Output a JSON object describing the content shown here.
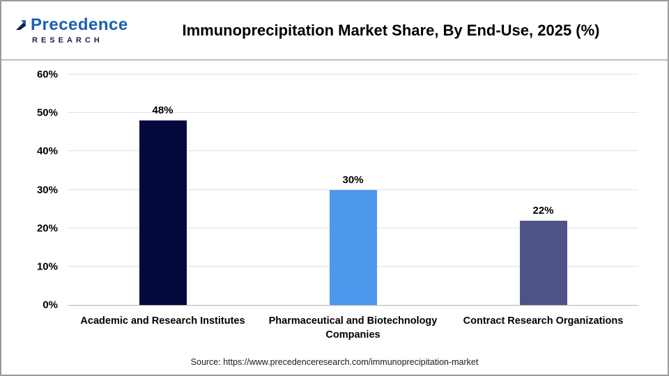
{
  "header": {
    "logo": {
      "line1": "Precedence",
      "line2": "RESEARCH",
      "brand_blue": "#1b5fb5",
      "brand_navy": "#15204e"
    },
    "title": "Immunoprecipitation Market Share, By End-Use, 2025 (%)"
  },
  "chart_data": {
    "type": "bar",
    "title": "Immunoprecipitation Market Share, By End-Use, 2025 (%)",
    "categories": [
      "Academic and Research Institutes",
      "Pharmaceutical and Biotechnology Companies",
      "Contract Research Organizations"
    ],
    "values": [
      48,
      30,
      22
    ],
    "value_labels": [
      "48%",
      "30%",
      "22%"
    ],
    "bar_colors": [
      "#06093d",
      "#4d97ed",
      "#4d5386"
    ],
    "xlabel": "",
    "ylabel": "",
    "ylim": [
      0,
      60
    ],
    "yticks": [
      0,
      10,
      20,
      30,
      40,
      50,
      60
    ],
    "ytick_labels": [
      "0%",
      "10%",
      "20%",
      "30%",
      "40%",
      "50%",
      "60%"
    ],
    "grid": true,
    "legend": false
  },
  "footer": {
    "source": "Source: https://www.precedenceresearch.com/immunoprecipitation-market"
  }
}
